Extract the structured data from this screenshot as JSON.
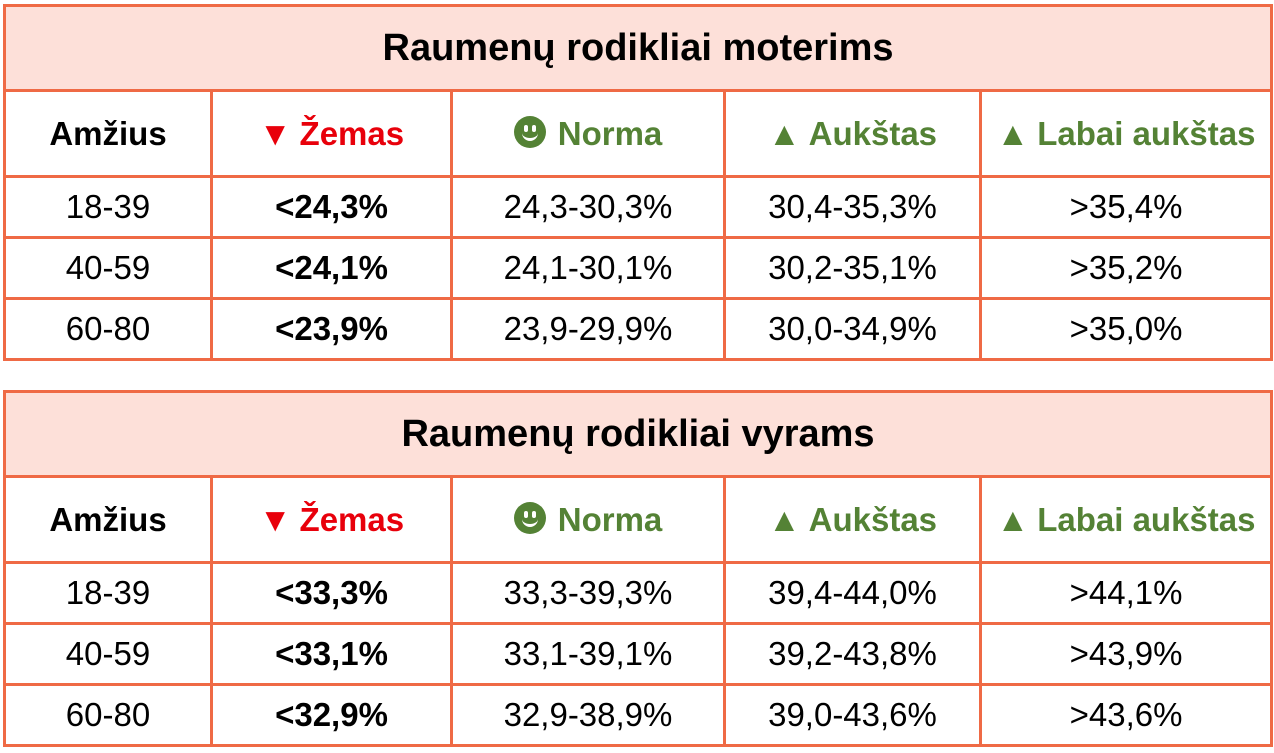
{
  "colors": {
    "border": "#ef6a45",
    "title_bg": "#fde0d9",
    "low": "#e8000b",
    "green": "#548235"
  },
  "headers": {
    "age": "Amžius",
    "low": "Žemas",
    "low_icon": "▼",
    "normal": "Norma",
    "normal_icon": "smiley-icon",
    "high": "Aukštas",
    "high_icon": "▲",
    "very_high": "Labai aukštas",
    "very_high_icon": "▲"
  },
  "women": {
    "title": "Raumenų rodikliai moterims",
    "rows": [
      {
        "age": "18-39",
        "low": "<24,3%",
        "normal": "24,3-30,3%",
        "high": "30,4-35,3%",
        "very_high": ">35,4%"
      },
      {
        "age": "40-59",
        "low": "<24,1%",
        "normal": "24,1-30,1%",
        "high": "30,2-35,1%",
        "very_high": ">35,2%"
      },
      {
        "age": "60-80",
        "low": "<23,9%",
        "normal": "23,9-29,9%",
        "high": "30,0-34,9%",
        "very_high": ">35,0%"
      }
    ]
  },
  "men": {
    "title": "Raumenų rodikliai vyrams",
    "rows": [
      {
        "age": "18-39",
        "low": "<33,3%",
        "normal": "33,3-39,3%",
        "high": "39,4-44,0%",
        "very_high": ">44,1%"
      },
      {
        "age": "40-59",
        "low": "<33,1%",
        "normal": "33,1-39,1%",
        "high": "39,2-43,8%",
        "very_high": ">43,9%"
      },
      {
        "age": "60-80",
        "low": "<32,9%",
        "normal": "32,9-38,9%",
        "high": "39,0-43,6%",
        "very_high": ">43,6%"
      }
    ]
  }
}
